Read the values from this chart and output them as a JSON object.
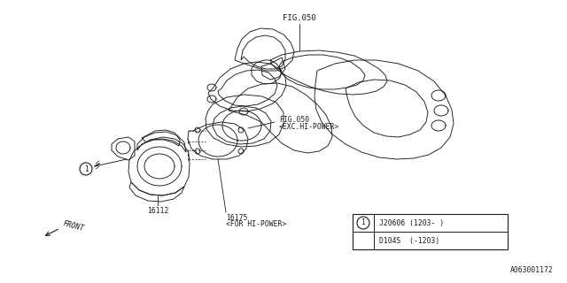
{
  "bg_color": "#ffffff",
  "line_color": "#1a1a1a",
  "fig_number": "A063001172",
  "labels": {
    "fig050_top": "FIG.050",
    "fig050_mid": "FIG.050",
    "fig050_mid2": "<EXC.HI-POWER>",
    "part_16112": "16112",
    "part_16175": "16175",
    "part_16175b": "<FOR HI-POWER>",
    "front": "FRONT",
    "table_row1": "D104S  (-1203)",
    "table_row2": "J20606 (1203- )"
  },
  "text_fontsize": 6.5,
  "small_fontsize": 5.8,
  "lw": 0.65
}
